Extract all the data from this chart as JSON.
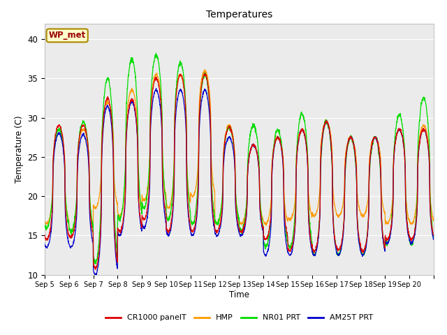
{
  "title": "Temperatures",
  "xlabel": "Time",
  "ylabel": "Temperature (C)",
  "ylim": [
    10,
    42
  ],
  "yticks": [
    10,
    15,
    20,
    25,
    30,
    35,
    40
  ],
  "legend_labels": [
    "CR1000 panelT",
    "HMP",
    "NR01 PRT",
    "AM25T PRT"
  ],
  "line_colors": [
    "#dd0000",
    "#ff9900",
    "#00dd00",
    "#0000cc"
  ],
  "annotation_text": "WP_met",
  "annotation_bg": "#ffffcc",
  "annotation_border": "#aa8800",
  "annotation_text_color": "#990000",
  "bg_gray": "#ebebeb",
  "figsize": [
    6.4,
    4.8
  ],
  "dpi": 100,
  "day_peaks_cr": [
    29,
    29,
    32.5,
    32.3,
    35.0,
    35.5,
    35.5,
    28.8,
    26.5,
    27.5,
    28.5,
    29.5,
    27.5,
    27.5,
    28.5,
    28.5
  ],
  "day_lows_cr": [
    14.5,
    14.8,
    10.8,
    15.5,
    17.0,
    15.5,
    15.5,
    15.5,
    15.5,
    14.5,
    13.0,
    13.0,
    13.2,
    13.0,
    14.5,
    14.5
  ],
  "day_peaks_nr": [
    28.5,
    29.5,
    35.0,
    37.5,
    38.0,
    37.0,
    35.5,
    28.8,
    29.0,
    28.5,
    30.5,
    29.5,
    27.5,
    27.5,
    30.3,
    32.5
  ],
  "day_lows_nr": [
    16.0,
    15.5,
    11.5,
    17.0,
    18.5,
    17.0,
    16.5,
    16.5,
    15.5,
    13.5,
    13.5,
    12.5,
    12.5,
    12.5,
    14.0,
    13.8
  ],
  "day_peaks_hmp": [
    28.5,
    28.5,
    32.0,
    33.5,
    35.5,
    35.5,
    36.0,
    29.0,
    26.5,
    27.5,
    28.5,
    29.5,
    27.5,
    27.5,
    28.5,
    29.0
  ],
  "day_lows_hmp": [
    16.5,
    15.5,
    18.5,
    17.5,
    19.5,
    18.5,
    20.0,
    16.5,
    16.5,
    16.5,
    17.0,
    17.5,
    17.5,
    17.5,
    16.5,
    16.5
  ],
  "day_peaks_am": [
    28.0,
    27.8,
    31.5,
    32.0,
    33.5,
    33.5,
    33.5,
    27.5,
    26.5,
    27.5,
    28.5,
    29.5,
    27.5,
    27.5,
    28.5,
    28.5
  ],
  "day_lows_am": [
    13.5,
    13.5,
    10.0,
    15.0,
    16.0,
    15.0,
    15.0,
    15.0,
    15.0,
    12.5,
    12.5,
    12.5,
    12.5,
    12.5,
    14.0,
    14.0
  ],
  "num_days": 16,
  "pts_per_day": 144
}
